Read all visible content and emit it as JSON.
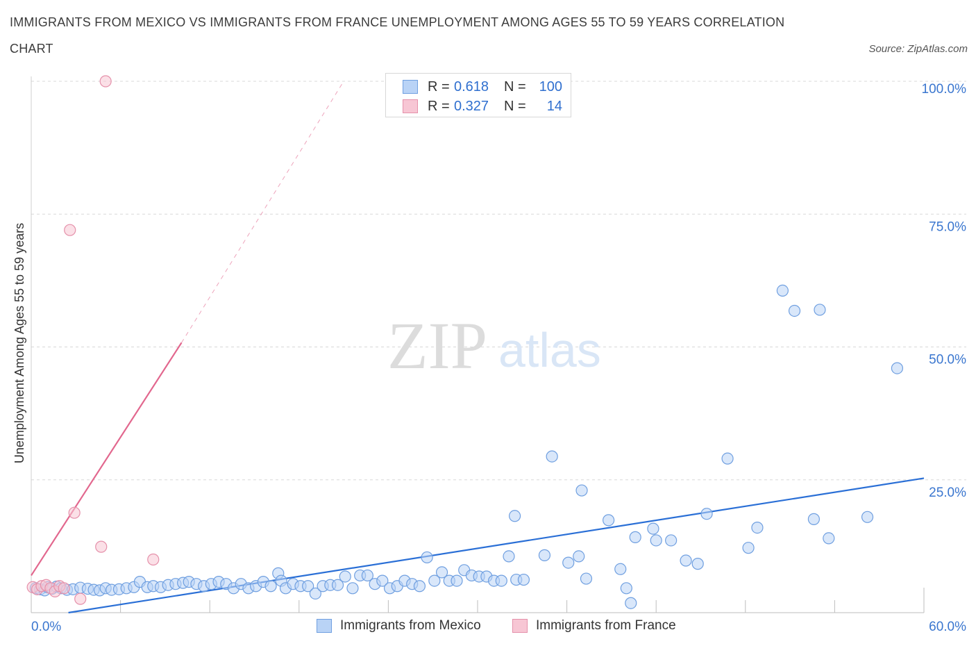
{
  "title_line1": "IMMIGRANTS FROM MEXICO VS IMMIGRANTS FROM FRANCE UNEMPLOYMENT AMONG AGES 55 TO 59 YEARS CORRELATION",
  "title_line2": "CHART",
  "source": "Source: ZipAtlas.com",
  "watermark": {
    "zip": "ZIP",
    "atlas": "atlas"
  },
  "colors": {
    "mexico_fill": "#b9d3f6",
    "mexico_stroke": "#6f9fe0",
    "mexico_line": "#2a6fd6",
    "france_fill": "#f7c6d4",
    "france_stroke": "#e590aa",
    "france_line": "#e2678e",
    "axis_label": "#3a76cf",
    "grid": "#d8d8d8"
  },
  "legend": {
    "rows": [
      {
        "r_label": "R =",
        "r_value": "0.618",
        "n_label": "N =",
        "n_value": "100",
        "series": "mexico"
      },
      {
        "r_label": "R =",
        "r_value": "0.327",
        "n_label": "N =",
        "n_value": "14",
        "series": "france"
      }
    ]
  },
  "bottom_legend": {
    "mexico": "Immigrants from Mexico",
    "france": "Immigrants from France"
  },
  "chart_data": {
    "type": "scatter",
    "title": "IMMIGRANTS FROM MEXICO VS IMMIGRANTS FROM FRANCE UNEMPLOYMENT AMONG AGES 55 TO 59 YEARS CORRELATION CHART",
    "ylabel": "Unemployment Among Ages 55 to 59 years",
    "xlabel": "",
    "xlim": [
      0,
      60
    ],
    "ylim": [
      0,
      100
    ],
    "x_tick_labels": [
      "0.0%",
      "60.0%"
    ],
    "y_tick_labels": [
      {
        "value": 100,
        "label": "100.0%"
      },
      {
        "value": 75,
        "label": "75.0%"
      },
      {
        "value": 50,
        "label": "50.0%"
      },
      {
        "value": 25,
        "label": "25.0%"
      }
    ],
    "grid": true,
    "legend_position": "top-center",
    "series": [
      {
        "name": "Immigrants from Mexico",
        "R": 0.618,
        "N": 100,
        "trend": {
          "x": [
            2.5,
            60
          ],
          "y": [
            0,
            25.3
          ]
        },
        "points": [
          [
            0.3,
            4.6
          ],
          [
            0.6,
            4.4
          ],
          [
            0.9,
            4.2
          ],
          [
            1.1,
            4.8
          ],
          [
            1.4,
            4.5
          ],
          [
            1.7,
            4.9
          ],
          [
            2.0,
            4.6
          ],
          [
            2.4,
            4.3
          ],
          [
            2.8,
            4.4
          ],
          [
            3.3,
            4.7
          ],
          [
            3.8,
            4.5
          ],
          [
            4.2,
            4.3
          ],
          [
            4.6,
            4.2
          ],
          [
            5.0,
            4.6
          ],
          [
            5.4,
            4.3
          ],
          [
            5.9,
            4.4
          ],
          [
            6.4,
            4.6
          ],
          [
            6.9,
            4.8
          ],
          [
            7.3,
            5.8
          ],
          [
            7.8,
            4.8
          ],
          [
            8.2,
            5.0
          ],
          [
            8.7,
            4.8
          ],
          [
            9.2,
            5.2
          ],
          [
            9.7,
            5.4
          ],
          [
            10.2,
            5.6
          ],
          [
            10.6,
            5.8
          ],
          [
            11.1,
            5.4
          ],
          [
            11.6,
            5.0
          ],
          [
            12.1,
            5.4
          ],
          [
            12.6,
            5.8
          ],
          [
            13.1,
            5.4
          ],
          [
            13.6,
            4.6
          ],
          [
            14.1,
            5.4
          ],
          [
            14.6,
            4.6
          ],
          [
            15.1,
            5.0
          ],
          [
            15.6,
            5.8
          ],
          [
            16.1,
            5.0
          ],
          [
            16.6,
            7.4
          ],
          [
            16.8,
            6.0
          ],
          [
            17.1,
            4.6
          ],
          [
            17.6,
            5.4
          ],
          [
            18.1,
            5.0
          ],
          [
            18.6,
            5.0
          ],
          [
            19.1,
            3.6
          ],
          [
            19.6,
            5.0
          ],
          [
            20.1,
            5.2
          ],
          [
            20.6,
            5.2
          ],
          [
            21.1,
            6.8
          ],
          [
            21.6,
            4.6
          ],
          [
            22.1,
            7.0
          ],
          [
            22.6,
            7.0
          ],
          [
            23.1,
            5.4
          ],
          [
            23.6,
            6.0
          ],
          [
            24.1,
            4.6
          ],
          [
            24.6,
            5.0
          ],
          [
            25.1,
            6.0
          ],
          [
            25.6,
            5.4
          ],
          [
            26.1,
            5.0
          ],
          [
            26.6,
            10.4
          ],
          [
            27.1,
            6.0
          ],
          [
            27.6,
            7.6
          ],
          [
            28.1,
            6.0
          ],
          [
            28.6,
            6.0
          ],
          [
            29.1,
            8.0
          ],
          [
            29.6,
            7.0
          ],
          [
            30.1,
            6.8
          ],
          [
            30.6,
            6.8
          ],
          [
            31.1,
            6.0
          ],
          [
            31.6,
            6.0
          ],
          [
            32.1,
            10.6
          ],
          [
            32.6,
            6.2
          ],
          [
            33.1,
            6.2
          ],
          [
            32.5,
            18.2
          ],
          [
            35.0,
            29.4
          ],
          [
            34.5,
            10.8
          ],
          [
            36.1,
            9.4
          ],
          [
            36.8,
            10.6
          ],
          [
            37.3,
            6.4
          ],
          [
            37.0,
            23.0
          ],
          [
            38.8,
            17.4
          ],
          [
            39.6,
            8.2
          ],
          [
            40.0,
            4.6
          ],
          [
            40.3,
            1.8
          ],
          [
            40.6,
            14.2
          ],
          [
            41.8,
            15.8
          ],
          [
            42.0,
            13.6
          ],
          [
            43.0,
            13.6
          ],
          [
            44.0,
            9.8
          ],
          [
            44.8,
            9.2
          ],
          [
            45.4,
            18.6
          ],
          [
            46.8,
            29.0
          ],
          [
            48.2,
            12.2
          ],
          [
            48.8,
            16.0
          ],
          [
            50.5,
            60.6
          ],
          [
            51.3,
            56.8
          ],
          [
            52.6,
            17.6
          ],
          [
            53.0,
            57.0
          ],
          [
            53.6,
            14.0
          ],
          [
            56.2,
            18.0
          ],
          [
            58.2,
            46.0
          ]
        ]
      },
      {
        "name": "Immigrants from France",
        "R": 0.327,
        "N": 14,
        "trend": {
          "x": [
            0,
            10.1
          ],
          "y": [
            7.0,
            50.8
          ]
        },
        "trend_extension": {
          "x": [
            10.1,
            21.0
          ],
          "y": [
            50.8,
            100
          ]
        },
        "points": [
          [
            0.1,
            4.8
          ],
          [
            0.4,
            4.4
          ],
          [
            0.7,
            5.0
          ],
          [
            1.0,
            5.2
          ],
          [
            1.3,
            4.6
          ],
          [
            1.6,
            4.0
          ],
          [
            1.9,
            5.0
          ],
          [
            2.2,
            4.6
          ],
          [
            2.6,
            72.0
          ],
          [
            2.9,
            18.8
          ],
          [
            3.3,
            2.6
          ],
          [
            4.7,
            12.4
          ],
          [
            5.0,
            100.0
          ],
          [
            8.2,
            10.0
          ]
        ]
      }
    ]
  }
}
